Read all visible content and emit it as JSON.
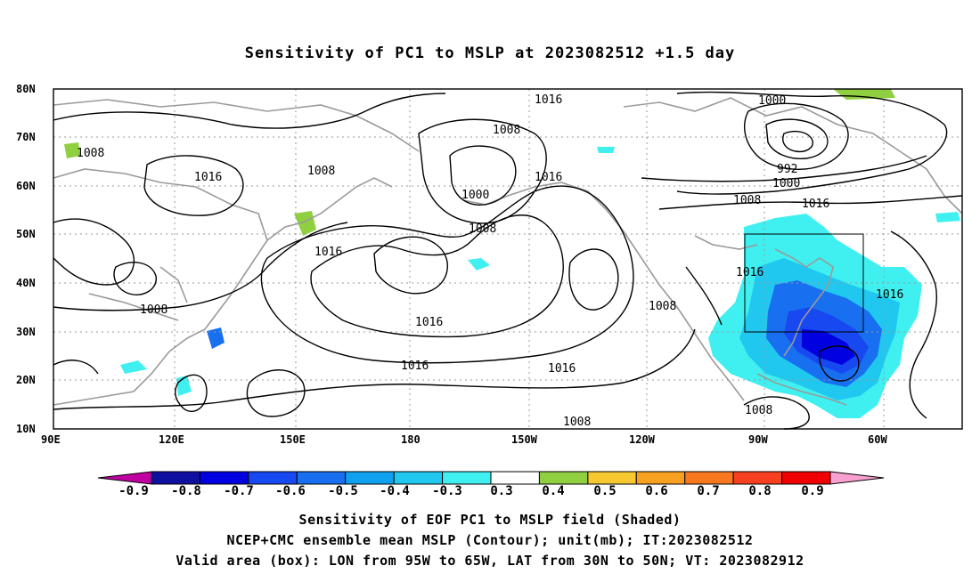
{
  "title": "Sensitivity of PC1 to MSLP at 2023082512 +1.5 day",
  "map": {
    "lat_labels": [
      "80N",
      "70N",
      "60N",
      "50N",
      "40N",
      "30N",
      "20N",
      "10N"
    ],
    "lon_labels": [
      "90E",
      "120E",
      "150E",
      "180",
      "150W",
      "120W",
      "90W",
      "60W"
    ],
    "contour_labels": [
      "1016",
      "1008",
      "1008",
      "1016",
      "1008",
      "1016",
      "1016",
      "1008",
      "1000",
      "1008",
      "1016",
      "1000",
      "992",
      "1000",
      "1008",
      "1016",
      "1016",
      "1016",
      "1008",
      "1016",
      "1016",
      "1008",
      "1008"
    ],
    "box": {
      "lon_from": "95W",
      "lon_to": "65W",
      "lat_from": "30N",
      "lat_to": "50N"
    }
  },
  "colorbar": {
    "ticks": [
      "-0.9",
      "-0.8",
      "-0.7",
      "-0.6",
      "-0.5",
      "-0.4",
      "-0.3",
      "0.3",
      "0.4",
      "0.5",
      "0.6",
      "0.7",
      "0.8",
      "0.9"
    ],
    "colors": [
      "#c000a0",
      "#1010a0",
      "#0000e0",
      "#1848f0",
      "#1870f0",
      "#10a0f0",
      "#20c8f0",
      "#40f0f0",
      "#ffffff",
      "#90d040",
      "#f8c830",
      "#f8a020",
      "#f87820",
      "#f84020",
      "#f00000",
      "#f8a0d0"
    ]
  },
  "caption": {
    "line1": "Sensitivity of EOF PC1 to MSLP field (Shaded)",
    "line2": "NCEP+CMC ensemble mean MSLP (Contour); unit(mb); IT:2023082512",
    "line3": "Valid area (box): LON from 95W to 65W, LAT from 30N to 50N; VT: 2023082912"
  }
}
